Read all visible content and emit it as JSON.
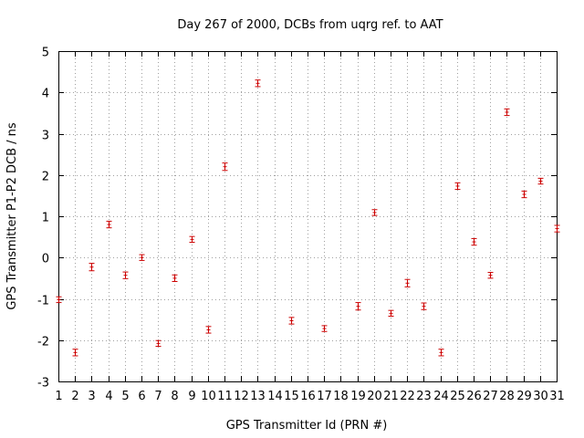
{
  "chart_data": {
    "type": "scatter",
    "title": "Day 267 of 2000, DCBs from uqrg ref. to AAT",
    "xlabel": "GPS Transmitter Id (PRN #)",
    "ylabel": "GPS Transmitter P1-P2 DCB / ns",
    "xlim": [
      1,
      31
    ],
    "ylim": [
      -3,
      5
    ],
    "x_ticks": [
      "1",
      "2",
      "3",
      "4",
      "5",
      "6",
      "7",
      "8",
      "9",
      "10",
      "11",
      "12",
      "13",
      "14",
      "15",
      "16",
      "17",
      "18",
      "19",
      "20",
      "21",
      "22",
      "23",
      "24",
      "25",
      "26",
      "27",
      "28",
      "29",
      "30",
      "31"
    ],
    "y_ticks": [
      "-3",
      "-2",
      "-1",
      "0",
      "1",
      "2",
      "3",
      "4",
      "5"
    ],
    "grid": true,
    "colors": {
      "points": "#cc0000",
      "grid": "#a0a0a0",
      "frame": "#000000"
    },
    "points": [
      {
        "x": 1,
        "y": -1.02,
        "err": 0.07
      },
      {
        "x": 2,
        "y": -2.3,
        "err": 0.08
      },
      {
        "x": 3,
        "y": -0.23,
        "err": 0.09
      },
      {
        "x": 4,
        "y": 0.8,
        "err": 0.08
      },
      {
        "x": 5,
        "y": -0.43,
        "err": 0.08
      },
      {
        "x": 6,
        "y": 0.0,
        "err": 0.07
      },
      {
        "x": 7,
        "y": -2.08,
        "err": 0.07
      },
      {
        "x": 8,
        "y": -0.5,
        "err": 0.08
      },
      {
        "x": 9,
        "y": 0.44,
        "err": 0.07
      },
      {
        "x": 10,
        "y": -1.75,
        "err": 0.08
      },
      {
        "x": 11,
        "y": 2.2,
        "err": 0.09
      },
      {
        "x": 13,
        "y": 4.22,
        "err": 0.08
      },
      {
        "x": 15,
        "y": -1.53,
        "err": 0.08
      },
      {
        "x": 17,
        "y": -1.72,
        "err": 0.07
      },
      {
        "x": 19,
        "y": -1.18,
        "err": 0.09
      },
      {
        "x": 20,
        "y": 1.09,
        "err": 0.07
      },
      {
        "x": 21,
        "y": -1.35,
        "err": 0.07
      },
      {
        "x": 22,
        "y": -0.62,
        "err": 0.09
      },
      {
        "x": 23,
        "y": -1.18,
        "err": 0.08
      },
      {
        "x": 24,
        "y": -2.3,
        "err": 0.08
      },
      {
        "x": 25,
        "y": 1.73,
        "err": 0.08
      },
      {
        "x": 26,
        "y": 0.38,
        "err": 0.08
      },
      {
        "x": 27,
        "y": -0.43,
        "err": 0.07
      },
      {
        "x": 28,
        "y": 3.52,
        "err": 0.08
      },
      {
        "x": 29,
        "y": 1.53,
        "err": 0.08
      },
      {
        "x": 30,
        "y": 1.85,
        "err": 0.07
      },
      {
        "x": 31,
        "y": 0.7,
        "err": 0.08
      }
    ]
  }
}
